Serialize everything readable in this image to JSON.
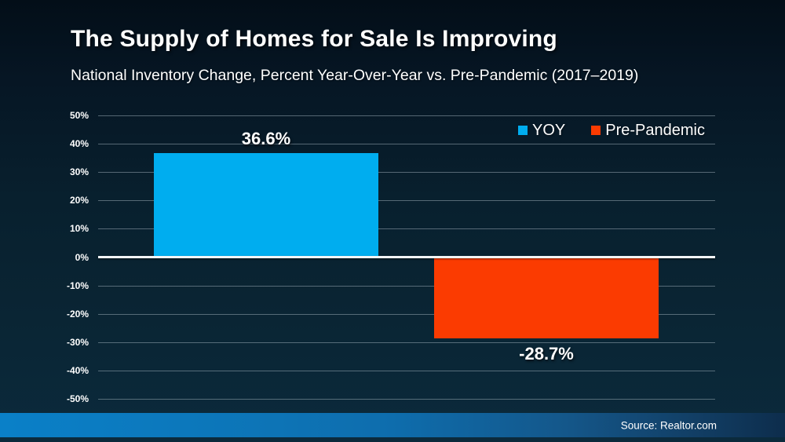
{
  "header": {
    "title": "The Supply of Homes for Sale Is Improving",
    "subtitle": "National Inventory Change, Percent Year-Over-Year vs. Pre-Pandemic (2017–2019)"
  },
  "footer": {
    "source_label": "Source: Realtor.com"
  },
  "colors": {
    "yoy_blue": "#00ADEF",
    "pre_pandemic_red": "#FB3B01",
    "background_top": "#030e18",
    "background_bottom": "#0b2a3c",
    "footer_left_blue": "#0a80c8",
    "footer_right_navy": "#0d2d4c",
    "gridline": "#96a6b0",
    "zero_line": "#f2f5f8"
  },
  "chart_data": {
    "type": "bar",
    "title": "The Supply of Homes for Sale Is Improving",
    "subtitle": "National Inventory Change, Percent Year-Over-Year vs. Pre-Pandemic (2017–2019)",
    "categories": [
      "YOY",
      "Pre-Pandemic"
    ],
    "series": [
      {
        "name": "YOY",
        "value": 36.6,
        "label": "36.6%",
        "color": "#00ADEF"
      },
      {
        "name": "Pre-Pandemic",
        "value": -28.7,
        "label": "-28.7%",
        "color": "#FB3B01"
      }
    ],
    "xlabel": "",
    "ylabel": "",
    "ylim": [
      -50,
      50
    ],
    "ytick_step": 10,
    "yticks": [
      50,
      40,
      30,
      20,
      10,
      0,
      -10,
      -20,
      -30,
      -40,
      -50
    ],
    "ytick_labels": [
      "50%",
      "40%",
      "30%",
      "20%",
      "10%",
      "0%",
      "-10%",
      "-20%",
      "-30%",
      "-40%",
      "-50%"
    ],
    "grid": true,
    "legend_position": "top-right",
    "legend": {
      "items": [
        {
          "label": "YOY",
          "color": "#00ADEF"
        },
        {
          "label": "Pre-Pandemic",
          "color": "#FB3B01"
        }
      ]
    }
  }
}
